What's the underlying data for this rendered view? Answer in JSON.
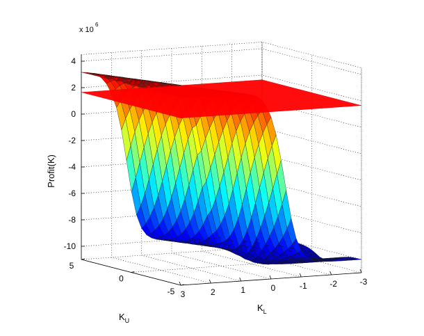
{
  "chart_data": {
    "type": "surface3d",
    "zlabel": "Profit(K)",
    "xlabel_main": "K",
    "xlabel_sub": "L",
    "ylabel_main": "K",
    "ylabel_sub": "U",
    "z_multiplier": "x 10",
    "z_multiplier_exp": "6",
    "z_ticks": [
      "4",
      "2",
      "0",
      "-2",
      "-4",
      "-6",
      "-8",
      "-10"
    ],
    "z_tick_values": [
      4,
      2,
      0,
      -2,
      -4,
      -6,
      -8,
      -10
    ],
    "kl_ticks": [
      "3",
      "2",
      "1",
      "0",
      "-1",
      "-2",
      "-3"
    ],
    "kl_tick_values": [
      3,
      2,
      1,
      0,
      -1,
      -2,
      -3
    ],
    "ku_ticks": [
      "5",
      "0",
      "-5"
    ],
    "ku_tick_values": [
      5,
      0,
      -5
    ],
    "zlim": [
      -11,
      4.5
    ],
    "kl_range": [
      -3,
      3
    ],
    "ku_range": [
      -5,
      5
    ],
    "plane_value": 1.65,
    "plane_color": "#ff0000",
    "colormap": "jet",
    "grid": true
  }
}
